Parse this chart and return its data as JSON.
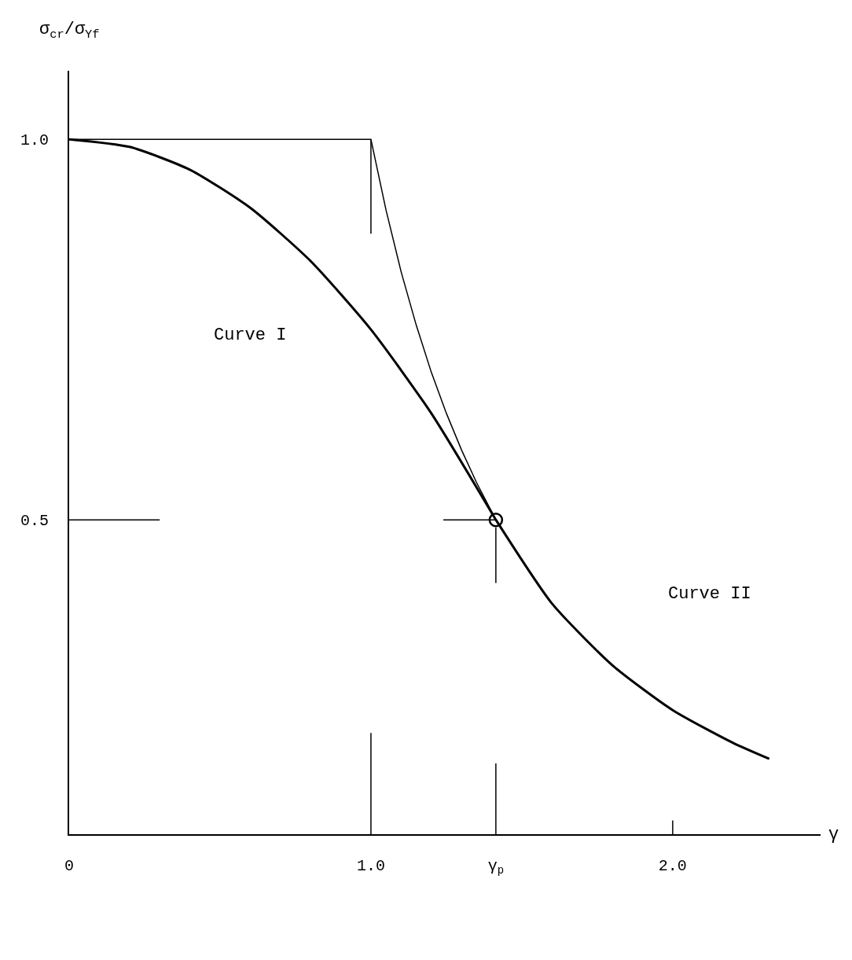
{
  "chart_data": {
    "type": "line",
    "xlabel": "γ",
    "ylabel": "σ$_{cr}$/σ$_{Yf}$",
    "xlim": [
      0,
      2.49
    ],
    "ylim": [
      0.087,
      1.09
    ],
    "xticks": [
      0,
      {
        "value": 1.0,
        "label": "1.0"
      },
      {
        "value": 1.414,
        "label": "γ$_{p}$"
      },
      {
        "value": 2.0,
        "label": "2.0"
      }
    ],
    "yticks": [
      {
        "value": 0.5,
        "label": "0.5"
      },
      {
        "value": 1.0,
        "label": "1.0"
      }
    ],
    "marker": "none",
    "line_style": "solid",
    "annotations": [
      "Curve I",
      "Curve II"
    ],
    "series": [
      {
        "color": "#000000",
        "x": [
          0,
          0.2,
          0.4,
          0.6,
          0.8,
          1.0,
          1.2,
          1.414
        ],
        "values": [
          1,
          0.99,
          0.96,
          0.91,
          0.84,
          0.75,
          0.64,
          0.5
        ]
      },
      {
        "color": "#000000",
        "x": [
          1.414,
          1.6,
          1.8,
          2.0,
          2.2,
          2.32
        ],
        "values": [
          0.5,
          0.39,
          0.309,
          0.25,
          0.207,
          0.186
        ]
      },
      {
        "color": "#000000",
        "x": [
          0,
          1.0,
          1.05,
          1.1,
          1.15,
          1.2,
          1.25,
          1.3,
          1.35,
          1.414
        ],
        "values": [
          1,
          1,
          0.907,
          0.826,
          0.756,
          0.694,
          0.64,
          0.592,
          0.549,
          0.5
        ]
      },
      {
        "color": "#000000",
        "x": [
          1,
          1
        ],
        "values": [
          0.999,
          0.876
        ]
      },
      {
        "color": "#000000",
        "x": [
          0,
          0.3
        ],
        "values": [
          0.5,
          0.5
        ]
      },
      {
        "color": "#000000",
        "x": [
          1.24,
          1.414
        ],
        "values": [
          0.5,
          0.5
        ]
      },
      {
        "color": "#000000",
        "x": [
          1.414,
          1.414
        ],
        "values": [
          0.49,
          0.417
        ]
      },
      {
        "color": "#000000",
        "x": [
          1,
          1
        ],
        "values": [
          0.087,
          0.22
        ]
      },
      {
        "color": "#000000",
        "x": [
          1.414,
          1.414
        ],
        "values": [
          0.087,
          0.18
        ]
      },
      {
        "color": "#000000",
        "x": [
          2,
          2
        ],
        "values": [
          0.087,
          0.105
        ]
      },
      {
        "type": "scatter",
        "marker": "circle",
        "color": "#000000",
        "x": [
          1.414
        ],
        "values": [
          0.5
        ]
      }
    ]
  }
}
